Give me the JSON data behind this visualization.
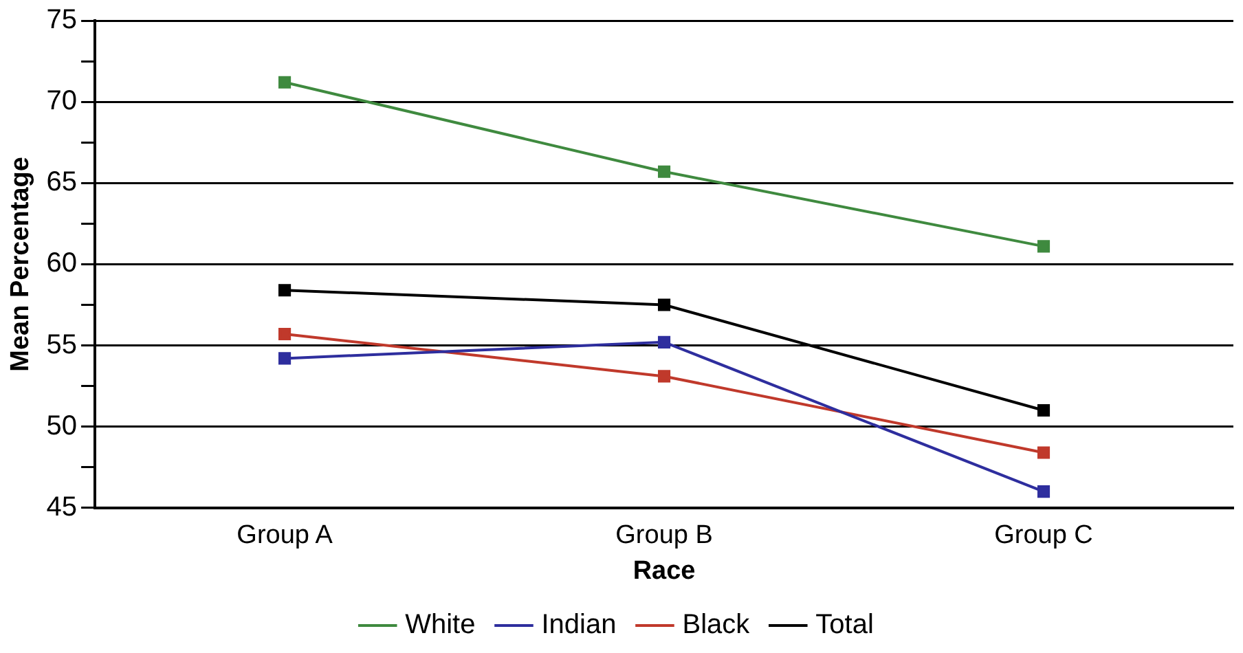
{
  "chart_data": {
    "type": "line",
    "xlabel": "Race",
    "ylabel": "Mean Percentage",
    "categories": [
      "Group A",
      "Group B",
      "Group C"
    ],
    "series": [
      {
        "name": "White",
        "color": "#3f8a3f",
        "values": [
          71.2,
          65.7,
          61.1
        ]
      },
      {
        "name": "Indian",
        "color": "#2e2e9e",
        "values": [
          54.2,
          55.2,
          46.0
        ]
      },
      {
        "name": "Black",
        "color": "#c0392b",
        "values": [
          55.7,
          53.1,
          48.4
        ]
      },
      {
        "name": "Total",
        "color": "#000000",
        "values": [
          58.4,
          57.5,
          51.0
        ]
      }
    ],
    "ylim": [
      45,
      75
    ],
    "yticks": [
      45,
      {
        "value": 47.5,
        "label": null
      },
      50,
      {
        "value": 52.5,
        "label": null
      },
      55,
      {
        "value": 57.5,
        "label": null
      },
      60,
      {
        "value": 62.5,
        "label": null
      },
      65,
      {
        "value": 67.5,
        "label": null
      },
      70,
      {
        "value": 72.5,
        "label": null
      },
      75
    ],
    "grid": "y",
    "legend": "bottom",
    "marker": "square",
    "line_style": "solid"
  }
}
